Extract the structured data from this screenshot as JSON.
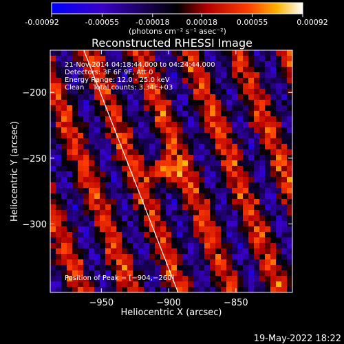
{
  "chart_data": {
    "type": "heatmap",
    "title": "Reconstructed RHESSI Image",
    "xlabel": "Heliocentric X (arcsec)",
    "ylabel": "Heliocentric Y (arcsec)",
    "xlim": [
      -988,
      -808
    ],
    "ylim": [
      -352,
      -168
    ],
    "x_ticks": [
      -950,
      -900,
      -850
    ],
    "x_tick_labels": [
      "−950",
      "−900",
      "−850"
    ],
    "y_ticks": [
      -200,
      -250,
      -300
    ],
    "y_tick_labels": [
      "−200",
      "−250",
      "−300"
    ],
    "colorbar": {
      "min": -0.00092,
      "max": 0.00092,
      "tick_values": [
        -0.00092,
        -0.00055,
        -0.00018,
        0.00018,
        0.00055,
        0.00092
      ],
      "tick_labels": [
        "-0.00092",
        "-0.00055",
        "-0.00018",
        "0.00018",
        "0.00055",
        "0.00092"
      ],
      "unit_label": "(photons cm⁻² s⁻¹ asec⁻²)",
      "colors": [
        "#0000ff",
        "#3a00c8",
        "#000000",
        "#b40000",
        "#ff3c00",
        "#ffb400",
        "#ffffff"
      ]
    },
    "peak": {
      "x": -904,
      "y": -260
    },
    "limb_line": [
      [
        -963,
        -168
      ],
      [
        -893,
        -352
      ]
    ],
    "annotations": [
      "21-Nov-2014 04:18:44.000 to 04:24:44.000",
      "Detectors: 3F 6F 9F, Att 0",
      "Energy Range: 12.0 - 25.0 keV",
      "Clean    Total counts: 3.34E+03",
      "Position of Peak = [−904,−260]"
    ],
    "grid": false
  },
  "footer": {
    "timestamp": "19-May-2022 18:22"
  }
}
